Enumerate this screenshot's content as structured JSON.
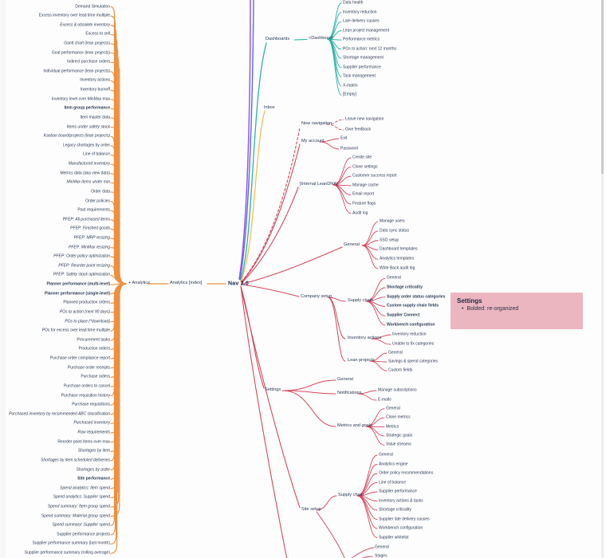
{
  "colors": {
    "analytics": "#EF8E3C",
    "dashboards": "#2AB3A6",
    "inbox": "#F2C04A",
    "settings_branch": "#D5495F",
    "offscreen_top_line_1": "#9557F0",
    "offscreen_top_line_2": "#5B67F0",
    "text": "#2A3B55",
    "annotation_bg": "#ECB6C1"
  },
  "root": {
    "label": "Nav 2.0"
  },
  "analytics": {
    "node": "+ Analytics",
    "index_node": "Analytics [index]",
    "items": [
      {
        "t": "Demand Simulation",
        "s": ""
      },
      {
        "t": "Excess inventory over lead time multiple",
        "s": ""
      },
      {
        "t": "Excess & obsolete inventory",
        "s": "i"
      },
      {
        "t": "Excess to sell",
        "s": ""
      },
      {
        "t": "Gantt chart (lean projects)",
        "s": ""
      },
      {
        "t": "Goal performance (lean projects)",
        "s": ""
      },
      {
        "t": "Indirect purchase orders",
        "s": ""
      },
      {
        "t": "Individual performance (lean projects)",
        "s": ""
      },
      {
        "t": "Inventory actions",
        "s": ""
      },
      {
        "t": "Inventory burnoff",
        "s": ""
      },
      {
        "t": "Inventory level over MinMax max",
        "s": ""
      },
      {
        "t": "Item group performance",
        "s": "b"
      },
      {
        "t": "Item master data",
        "s": ""
      },
      {
        "t": "Items under safety stock",
        "s": "i"
      },
      {
        "t": "Kanban board/projects (lean projects)",
        "s": "i"
      },
      {
        "t": "Legacy shortages by order",
        "s": ""
      },
      {
        "t": "Line of balance",
        "s": ""
      },
      {
        "t": "Manufactured inventory",
        "s": "i"
      },
      {
        "t": "Metrics data (aka view data)",
        "s": ""
      },
      {
        "t": "MinMax items under min",
        "s": "i"
      },
      {
        "t": "Order data",
        "s": ""
      },
      {
        "t": "Order policies",
        "s": ""
      },
      {
        "t": "Past requirements",
        "s": ""
      },
      {
        "t": "PFEP: All purchased items",
        "s": "i"
      },
      {
        "t": "PFEP: Finished goods",
        "s": ""
      },
      {
        "t": "PFEP: MRP resizing",
        "s": "i"
      },
      {
        "t": "PFEP: MinMax resizing",
        "s": "i"
      },
      {
        "t": "PFEP: Order policy optimization",
        "s": "i"
      },
      {
        "t": "PFEP: Reorder point resizing",
        "s": "i"
      },
      {
        "t": "PFEP: Safety stock optimization",
        "s": "i"
      },
      {
        "t": "Planner performance (multi-level)",
        "s": "b"
      },
      {
        "t": "Planner performance (single-level)",
        "s": "b"
      },
      {
        "t": "Planned production orders",
        "s": ""
      },
      {
        "t": "POs to action (next 90 days)",
        "s": "i"
      },
      {
        "t": "POs to place (*download)",
        "s": "i"
      },
      {
        "t": "POs for excess over lead time multiple",
        "s": ""
      },
      {
        "t": "Procurement tasks",
        "s": ""
      },
      {
        "t": "Production orders",
        "s": ""
      },
      {
        "t": "Purchase order compliance report",
        "s": ""
      },
      {
        "t": "Purchase order receipts",
        "s": ""
      },
      {
        "t": "Purchase orders",
        "s": ""
      },
      {
        "t": "Purchase orders to cancel",
        "s": ""
      },
      {
        "t": "Purchase requisition history",
        "s": ""
      },
      {
        "t": "Purchase requisitions",
        "s": ""
      },
      {
        "t": "Purchased inventory by recommended ABC classification",
        "s": "i"
      },
      {
        "t": "Purchased inventory",
        "s": "i"
      },
      {
        "t": "Raw requirements",
        "s": "i"
      },
      {
        "t": "Reorder point items over max",
        "s": ""
      },
      {
        "t": "Shortages by item",
        "s": "i"
      },
      {
        "t": "Shortages by item scheduled deliveries",
        "s": "i"
      },
      {
        "t": "Shortages by order",
        "s": "i"
      },
      {
        "t": "Site performance",
        "s": "b"
      },
      {
        "t": "Spend analytics: Item spend",
        "s": "i"
      },
      {
        "t": "Spend analytics: Supplier spend",
        "s": "i"
      },
      {
        "t": "Spend summary: Item group spend",
        "s": "i"
      },
      {
        "t": "Spend summary: Material group spend",
        "s": "i"
      },
      {
        "t": "Spend summary: Supplier spend",
        "s": "i"
      },
      {
        "t": "Supplier performance projects",
        "s": ""
      },
      {
        "t": "Supplier performance summary (last month)",
        "s": ""
      },
      {
        "t": "Supplier performance summary (rolling average)",
        "s": ""
      }
    ]
  },
  "dashboards": {
    "node": "Dashboards",
    "sub_node": "<Dashboard",
    "children": [
      "Data health",
      "Inventory reduction",
      "Late delivery causes",
      "Lean project management",
      "Performance metrics",
      "POs to action: next 12 months",
      "Shortage management",
      "Supplier performance",
      "Task management",
      "X-matrix",
      "[Empty]"
    ]
  },
  "inbox": {
    "node": "Inbox"
  },
  "new_navigation": {
    "node": "New navigation",
    "children": [
      "Leave new navigation",
      "Give feedback"
    ]
  },
  "my_account": {
    "node": "My account",
    "children": [
      "Exit",
      "Password"
    ]
  },
  "internal_leandna": {
    "node": "[Internal LeanDNA]",
    "children": [
      "Create site",
      "Clone settings",
      "Customer success report",
      "Manage cache",
      "Email report",
      "Feature flags",
      "Audit log"
    ]
  },
  "general": {
    "node": "General",
    "children": [
      "Manage users",
      "Data sync status",
      "SSO setup",
      "Dashboard templates",
      "Analytics templates",
      "Write Back audit log"
    ]
  },
  "company_setup": {
    "node": "Company setup",
    "supply_chain": {
      "node": "Supply chain",
      "children": [
        {
          "t": "General",
          "s": ""
        },
        {
          "t": "Shortage criticality",
          "s": "b"
        },
        {
          "t": "Supply order status categories",
          "s": "b"
        },
        {
          "t": "Custom supply chain fields",
          "s": "b"
        },
        {
          "t": "Supplier Connect",
          "s": "b"
        },
        {
          "t": "Workbench configuration",
          "s": "b"
        }
      ]
    },
    "inventory_actions": {
      "node": "Inventory actions",
      "children": [
        "Inventory reduction",
        "Unable to fix categories"
      ]
    },
    "lean_projects": {
      "node": "Lean projects",
      "children": [
        "General",
        "Savings & spend categories",
        "Custom fields"
      ]
    }
  },
  "settings": {
    "node": "Settings",
    "general_child": "General",
    "notifications": {
      "node": "Notifications",
      "children": [
        "Manage subscriptions",
        "E-mails"
      ]
    },
    "metrics_and_goals": {
      "node": "Metrics and goals",
      "children": [
        "General",
        "Clone metrics",
        "Metrics",
        "Strategic goals",
        "Value streams"
      ]
    }
  },
  "site_setup": {
    "node": "Site setup",
    "supply_chain": {
      "node": "Supply chain",
      "children": [
        "General",
        "Analytics engine",
        "Order policy recommendations",
        "Line of balance",
        "Supplier performance",
        "Inventory actions & tasks",
        "Shortage criticality",
        "Supplier late delivery causes",
        "Workbench configuration",
        "Supplier whitelist"
      ]
    },
    "overflow_children": [
      "General",
      "Stages"
    ]
  },
  "annotation": {
    "title": "Settings",
    "bullets": [
      "Bolded: re-organized"
    ]
  }
}
